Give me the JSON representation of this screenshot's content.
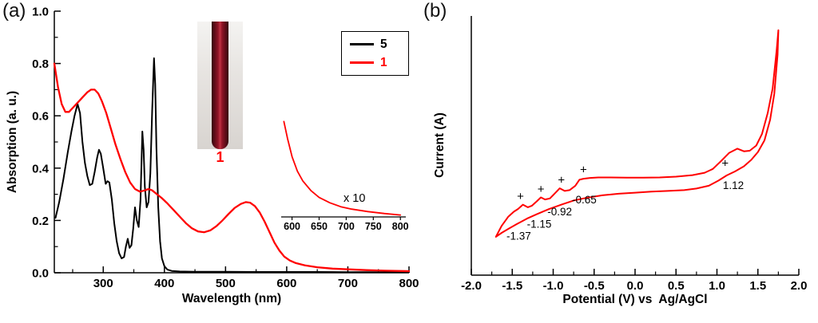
{
  "figure": {
    "panel_a_label": "(a)",
    "panel_b_label": "(b)"
  },
  "panels": {
    "a": {
      "xlabel": "Wavelength (nm)",
      "ylabel": "Absorption (a. u.)",
      "legend": [
        {
          "name": "5",
          "color": "#000000"
        },
        {
          "name": "1",
          "color": "#ff0000"
        }
      ],
      "photo_inset": {
        "label": "1",
        "solution_color": "#8f1426"
      }
    },
    "b": {
      "xlabel": "Potential (V) vs  Ag/AgCl",
      "ylabel": "Current (A)"
    }
  },
  "chart_data": [
    {
      "id": "absorption-spectrum",
      "type": "line",
      "title": "",
      "xlabel": "Wavelength (nm)",
      "ylabel": "Absorption (a. u.)",
      "xlim": [
        220,
        800
      ],
      "ylim": [
        0,
        1.0
      ],
      "xticks": [
        300,
        400,
        500,
        600,
        700,
        800
      ],
      "xminor": [
        250,
        350,
        450,
        550,
        650,
        750
      ],
      "yticks": [
        0.0,
        0.2,
        0.4,
        0.6,
        0.8,
        1.0
      ],
      "ytick_labels": [
        "0.0",
        "0.2",
        "0.4",
        "0.6",
        "0.8",
        "1.0"
      ],
      "yminor": [
        0.1,
        0.3,
        0.5,
        0.7,
        0.9
      ],
      "legend_position": "top-right",
      "grid": false,
      "series": [
        {
          "name": "5",
          "color": "#000000",
          "x": [
            222,
            228,
            235,
            242,
            248,
            253,
            258,
            262,
            266,
            270,
            274,
            278,
            282,
            286,
            290,
            293,
            296,
            300,
            304,
            307,
            310,
            314,
            318,
            322,
            326,
            330,
            334,
            337,
            340,
            343,
            346,
            349,
            352,
            355,
            358,
            361,
            364,
            366,
            368,
            371,
            374,
            377,
            380,
            383,
            385,
            387,
            390,
            393,
            396,
            400,
            405,
            412,
            425,
            450,
            500,
            550,
            600,
            650,
            700,
            750,
            800
          ],
          "y": [
            0.21,
            0.27,
            0.36,
            0.46,
            0.54,
            0.6,
            0.645,
            0.61,
            0.5,
            0.42,
            0.37,
            0.335,
            0.34,
            0.385,
            0.44,
            0.47,
            0.455,
            0.4,
            0.34,
            0.35,
            0.345,
            0.28,
            0.19,
            0.12,
            0.075,
            0.055,
            0.06,
            0.1,
            0.13,
            0.095,
            0.105,
            0.17,
            0.25,
            0.2,
            0.175,
            0.28,
            0.54,
            0.47,
            0.33,
            0.25,
            0.27,
            0.38,
            0.62,
            0.82,
            0.72,
            0.48,
            0.25,
            0.12,
            0.055,
            0.025,
            0.012,
            0.007,
            0.005,
            0.004,
            0.004,
            0.003,
            0.003,
            0.003,
            0.002,
            0.002,
            0.002
          ]
        },
        {
          "name": "1",
          "color": "#ff0000",
          "x": [
            220,
            226,
            232,
            238,
            244,
            250,
            258,
            266,
            274,
            280,
            286,
            292,
            298,
            305,
            312,
            320,
            328,
            336,
            344,
            352,
            360,
            368,
            374,
            380,
            388,
            396,
            405,
            415,
            425,
            435,
            445,
            455,
            465,
            475,
            485,
            495,
            505,
            515,
            525,
            533,
            540,
            548,
            556,
            564,
            572,
            580,
            588,
            596,
            605,
            615,
            630,
            650,
            675,
            700,
            730,
            760,
            800
          ],
          "y": [
            0.8,
            0.71,
            0.645,
            0.615,
            0.615,
            0.63,
            0.65,
            0.67,
            0.69,
            0.7,
            0.7,
            0.685,
            0.655,
            0.61,
            0.555,
            0.49,
            0.435,
            0.385,
            0.345,
            0.32,
            0.31,
            0.315,
            0.32,
            0.315,
            0.3,
            0.285,
            0.265,
            0.24,
            0.215,
            0.19,
            0.17,
            0.158,
            0.155,
            0.162,
            0.178,
            0.2,
            0.225,
            0.248,
            0.263,
            0.27,
            0.268,
            0.255,
            0.23,
            0.195,
            0.155,
            0.115,
            0.085,
            0.062,
            0.047,
            0.037,
            0.028,
            0.021,
            0.016,
            0.013,
            0.01,
            0.008,
            0.006
          ]
        }
      ]
    },
    {
      "id": "absorption-inset-x10",
      "type": "line",
      "annotation": "x 10",
      "xlim": [
        580,
        810
      ],
      "ylim": [
        0,
        1
      ],
      "xticks": [
        600,
        650,
        700,
        750,
        800
      ],
      "grid": false,
      "series": [
        {
          "name": "1 (x10)",
          "color": "#ff0000",
          "x": [
            585,
            592,
            600,
            610,
            620,
            635,
            650,
            670,
            690,
            710,
            740,
            770,
            800
          ],
          "y": [
            0.98,
            0.8,
            0.62,
            0.47,
            0.37,
            0.27,
            0.2,
            0.145,
            0.105,
            0.08,
            0.055,
            0.035,
            0.02
          ]
        }
      ]
    },
    {
      "id": "cyclic-voltammogram",
      "type": "line",
      "xlabel": "Potential (V) vs  Ag/AgCl",
      "ylabel": "Current (A)",
      "xlim": [
        -2.0,
        2.0
      ],
      "ylim": [
        0,
        1
      ],
      "xticks": [
        -2.0,
        -1.5,
        -1.0,
        -0.5,
        0.0,
        0.5,
        1.0,
        1.5,
        2.0
      ],
      "xtick_labels": [
        "-2.0",
        "-1.5",
        "-1.0",
        "-0.5",
        "0.0",
        "0.5",
        "1.0",
        "1.5",
        "2.0"
      ],
      "xminor": [
        -1.75,
        -1.25,
        -0.75,
        -0.25,
        0.25,
        0.75,
        1.25,
        1.75
      ],
      "grid": false,
      "series": [
        {
          "name": "1",
          "color": "#ff0000",
          "x": [
            -1.7,
            -1.63,
            -1.55,
            -1.48,
            -1.43,
            -1.37,
            -1.31,
            -1.26,
            -1.2,
            -1.15,
            -1.1,
            -1.04,
            -0.98,
            -0.92,
            -0.86,
            -0.8,
            -0.73,
            -0.68,
            -0.63,
            -0.55,
            -0.45,
            -0.3,
            -0.1,
            0.1,
            0.3,
            0.5,
            0.7,
            0.85,
            0.95,
            1.05,
            1.15,
            1.25,
            1.33,
            1.4,
            1.48,
            1.55,
            1.62,
            1.68,
            1.73,
            1.75,
            1.74,
            1.7,
            1.65,
            1.58,
            1.5,
            1.42,
            1.33,
            1.22,
            1.12,
            1.02,
            0.9,
            0.75,
            0.6,
            0.4,
            0.2,
            0.0,
            -0.2,
            -0.4,
            -0.6,
            -0.75,
            -0.9,
            -1.05,
            -1.2,
            -1.32,
            -1.45,
            -1.55,
            -1.63,
            -1.7
          ],
          "y": [
            0.148,
            0.19,
            0.225,
            0.245,
            0.255,
            0.272,
            0.262,
            0.268,
            0.285,
            0.3,
            0.292,
            0.296,
            0.315,
            0.335,
            0.325,
            0.328,
            0.345,
            0.368,
            0.372,
            0.375,
            0.377,
            0.377,
            0.376,
            0.376,
            0.377,
            0.38,
            0.386,
            0.395,
            0.41,
            0.44,
            0.472,
            0.488,
            0.478,
            0.48,
            0.5,
            0.545,
            0.625,
            0.72,
            0.87,
            0.945,
            0.85,
            0.7,
            0.6,
            0.52,
            0.475,
            0.445,
            0.42,
            0.4,
            0.385,
            0.365,
            0.345,
            0.334,
            0.328,
            0.325,
            0.322,
            0.318,
            0.314,
            0.308,
            0.298,
            0.288,
            0.272,
            0.255,
            0.235,
            0.218,
            0.196,
            0.178,
            0.163,
            0.148
          ]
        }
      ],
      "annotations": [
        {
          "text": "-1.37",
          "marker": "+",
          "plus_xy": [
            -1.4,
            0.302
          ],
          "label_xy": [
            -1.42,
            0.15
          ]
        },
        {
          "text": "-1.15",
          "marker": "+",
          "plus_xy": [
            -1.15,
            0.33
          ],
          "label_xy": [
            -1.17,
            0.196
          ]
        },
        {
          "text": "-0.92",
          "marker": "+",
          "plus_xy": [
            -0.9,
            0.365
          ],
          "label_xy": [
            -0.92,
            0.243
          ]
        },
        {
          "text": "-0.65",
          "marker": "+",
          "plus_xy": [
            -0.63,
            0.405
          ],
          "label_xy": [
            -0.62,
            0.29
          ]
        },
        {
          "text": "1.12",
          "marker": "+",
          "plus_xy": [
            1.1,
            0.43
          ],
          "label_xy": [
            1.2,
            0.345
          ]
        }
      ]
    }
  ]
}
